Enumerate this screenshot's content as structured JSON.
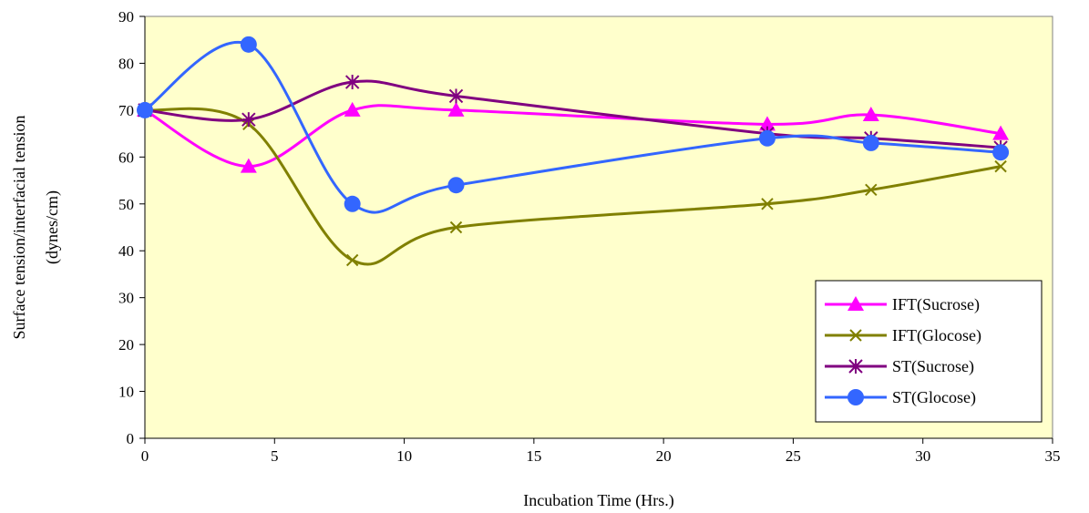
{
  "chart_data": {
    "type": "line",
    "title": "",
    "xlabel": "Incubation Time (Hrs.)",
    "ylabel_line1": "Surface tension/interfacial tension",
    "ylabel_line2": "(dynes/cm)",
    "xlim": [
      0,
      35
    ],
    "ylim": [
      0,
      90
    ],
    "x_ticks": [
      0,
      5,
      10,
      15,
      20,
      25,
      30,
      35
    ],
    "y_ticks": [
      0,
      10,
      20,
      30,
      40,
      50,
      60,
      70,
      80,
      90
    ],
    "x_tick_labels": [
      "0",
      "5",
      "10",
      "15",
      "20",
      "25",
      "30",
      "35"
    ],
    "y_tick_labels": [
      "0",
      "10",
      "20",
      "30",
      "40",
      "50",
      "60",
      "70",
      "80",
      "90"
    ],
    "grid": false,
    "plot_background": "#FFFFCC",
    "legend_position": "lower-right",
    "smooth": true,
    "series": [
      {
        "name": "IFT(Sucrose)",
        "color": "#FF00FF",
        "marker": "triangle",
        "x": [
          0,
          4,
          8,
          12,
          24,
          28,
          33
        ],
        "y": [
          70,
          58,
          70,
          70,
          67,
          69,
          65
        ]
      },
      {
        "name": "IFT(Glocose)",
        "color": "#808000",
        "marker": "x",
        "x": [
          0,
          4,
          8,
          12,
          24,
          28,
          33
        ],
        "y": [
          70,
          67,
          38,
          45,
          50,
          53,
          58
        ]
      },
      {
        "name": "ST(Sucrose)",
        "color": "#800080",
        "marker": "asterisk",
        "x": [
          0,
          4,
          8,
          12,
          24,
          28,
          33
        ],
        "y": [
          70,
          68,
          76,
          73,
          65,
          64,
          62
        ]
      },
      {
        "name": "ST(Glocose)",
        "color": "#3366FF",
        "marker": "circle",
        "x": [
          0,
          4,
          8,
          12,
          24,
          28,
          33
        ],
        "y": [
          70,
          84,
          50,
          54,
          64,
          63,
          61
        ]
      }
    ]
  }
}
